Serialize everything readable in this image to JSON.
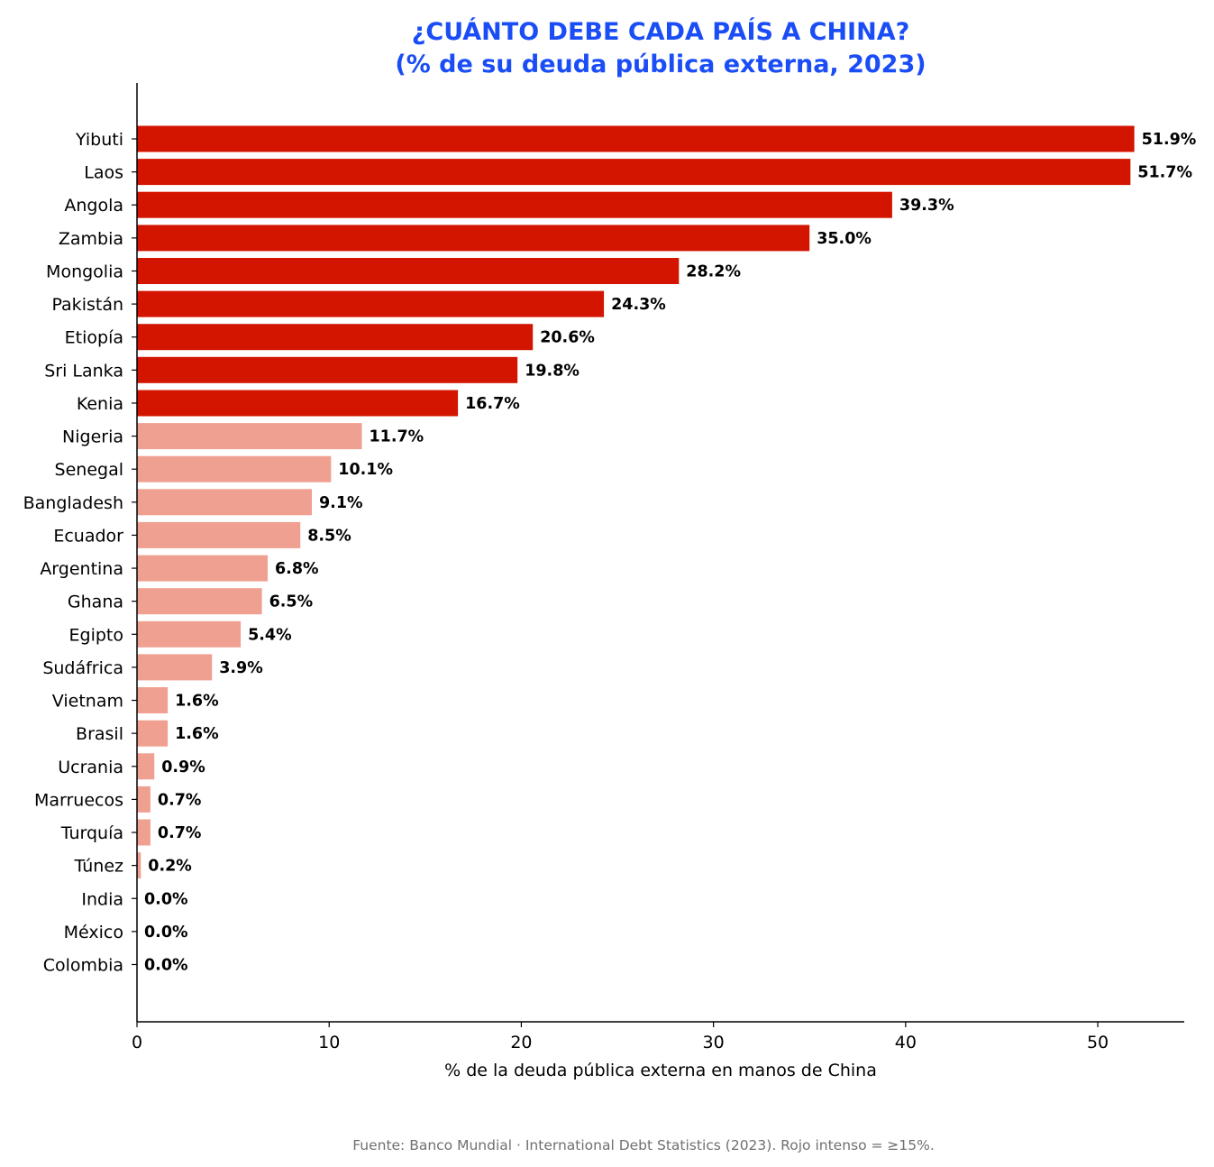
{
  "chart_data": {
    "type": "bar",
    "orientation": "horizontal",
    "title_line1": "¿CUÁNTO DEBE CADA PAÍS A CHINA?",
    "title_line2": "(% de su deuda pública externa, 2023)",
    "xlabel": "% de la deuda pública externa en manos de China",
    "ylabel": "",
    "xlim": [
      0,
      54.5
    ],
    "xticks": [
      "0",
      "10",
      "20",
      "30",
      "40",
      "50"
    ],
    "categories": [
      "Yibuti",
      "Laos",
      "Angola",
      "Zambia",
      "Mongolia",
      "Pakistán",
      "Etiopía",
      "Sri Lanka",
      "Kenia",
      "Nigeria",
      "Senegal",
      "Bangladesh",
      "Ecuador",
      "Argentina",
      "Ghana",
      "Egipto",
      "Sudáfrica",
      "Vietnam",
      "Brasil",
      "Ucrania",
      "Marruecos",
      "Turquía",
      "Túnez",
      "India",
      "México",
      "Colombia"
    ],
    "values": [
      51.9,
      51.7,
      39.3,
      35.0,
      28.2,
      24.3,
      20.6,
      19.8,
      16.7,
      11.7,
      10.1,
      9.1,
      8.5,
      6.8,
      6.5,
      5.4,
      3.9,
      1.6,
      1.6,
      0.9,
      0.7,
      0.7,
      0.2,
      0.0,
      0.0,
      0.0
    ],
    "value_labels": [
      "51.9%",
      "51.7%",
      "39.3%",
      "35.0%",
      "28.2%",
      "24.3%",
      "20.6%",
      "19.8%",
      "16.7%",
      "11.7%",
      "10.1%",
      "9.1%",
      "8.5%",
      "6.8%",
      "6.5%",
      "5.4%",
      "3.9%",
      "1.6%",
      "1.6%",
      "0.9%",
      "0.7%",
      "0.7%",
      "0.2%",
      "0.0%",
      "0.0%",
      "0.0%"
    ],
    "threshold": 15,
    "grid": false,
    "colors": {
      "high": "#d31500",
      "low": "#f0a090",
      "title": "#1a4df5",
      "footnote": "#707070"
    }
  },
  "footnote": "Fuente: Banco Mundial · International Debt Statistics (2023). Rojo intenso = ≥15%."
}
